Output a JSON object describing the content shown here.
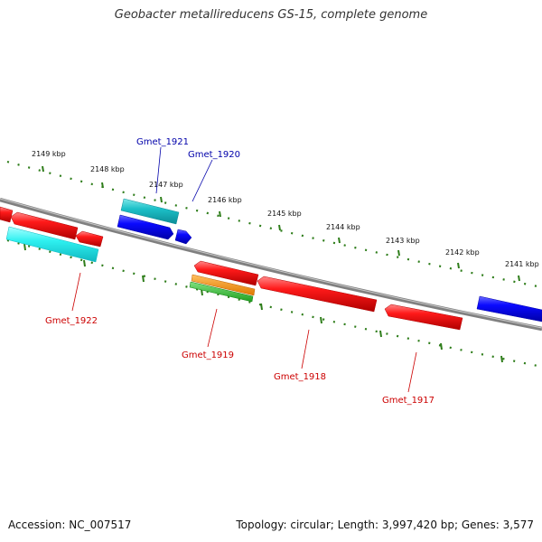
{
  "title": "Geobacter metallireducens GS-15, complete genome",
  "footer": {
    "accession": "Accession: NC_007517",
    "summary": "Topology: circular; Length: 3,997,420 bp; Genes: 3,577"
  },
  "colors": {
    "backbone": "#808080",
    "tick": "#2e7d1a",
    "label_forward": "#0000aa",
    "label_reverse": "#cc0000"
  },
  "ticks": [
    {
      "label": "2149 kbp"
    },
    {
      "label": "2148 kbp"
    },
    {
      "label": "2147 kbp"
    },
    {
      "label": "2146 kbp"
    },
    {
      "label": "2145 kbp"
    },
    {
      "label": "2144 kbp"
    },
    {
      "label": "2143 kbp"
    },
    {
      "label": "2142 kbp"
    },
    {
      "label": "2141 kbp"
    }
  ],
  "gene_labels": [
    {
      "name": "Gmet_1921",
      "strand": "forward"
    },
    {
      "name": "Gmet_1920",
      "strand": "forward"
    },
    {
      "name": "Gmet_1922",
      "strand": "reverse"
    },
    {
      "name": "Gmet_1919",
      "strand": "reverse"
    },
    {
      "name": "Gmet_1918",
      "strand": "reverse"
    },
    {
      "name": "Gmet_1917",
      "strand": "reverse"
    }
  ]
}
